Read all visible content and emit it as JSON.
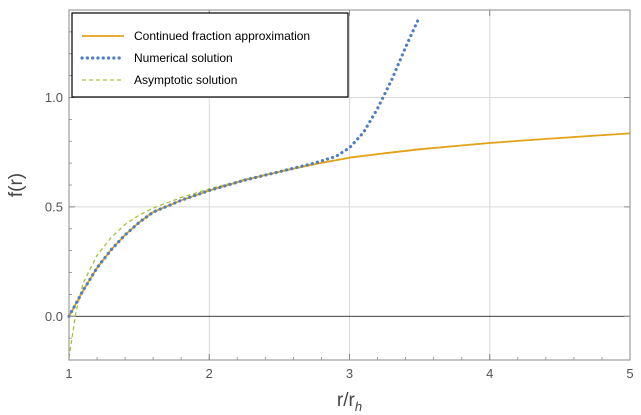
{
  "chart_data": {
    "type": "line",
    "xlabel": "r/r_h",
    "ylabel": "f(r)",
    "xlim": [
      1,
      5
    ],
    "ylim": [
      -0.2,
      1.4
    ],
    "x_ticks": [
      1,
      2,
      3,
      4,
      5
    ],
    "y_ticks": [
      0.0,
      0.5,
      1.0
    ],
    "x_tick_labels": [
      "1",
      "2",
      "3",
      "4",
      "5"
    ],
    "y_tick_labels": [
      "0.0",
      "0.5",
      "1.0"
    ],
    "grid": true,
    "zero_line": true,
    "legend_position": "top-left",
    "series": [
      {
        "name": "Continued fraction approximation",
        "style": "solid",
        "color": "#e3a21a",
        "x": [
          1.0,
          1.1,
          1.2,
          1.3,
          1.4,
          1.5,
          1.6,
          1.8,
          2.0,
          2.25,
          2.5,
          2.75,
          3.0,
          3.25,
          3.5,
          3.75,
          4.0,
          4.25,
          4.5,
          4.75,
          5.0
        ],
        "y": [
          0.0,
          0.117,
          0.221,
          0.304,
          0.372,
          0.429,
          0.476,
          0.53,
          0.575,
          0.622,
          0.661,
          0.695,
          0.725,
          0.745,
          0.763,
          0.778,
          0.792,
          0.804,
          0.815,
          0.826,
          0.836
        ]
      },
      {
        "name": "Numerical solution",
        "style": "dotted",
        "color": "#4f7fc0",
        "x": [
          1.0,
          1.1,
          1.2,
          1.3,
          1.4,
          1.5,
          1.6,
          1.8,
          2.0,
          2.25,
          2.5,
          2.75,
          2.9,
          3.0,
          3.1,
          3.2,
          3.3,
          3.4,
          3.5
        ],
        "y": [
          0.0,
          0.117,
          0.221,
          0.304,
          0.372,
          0.429,
          0.476,
          0.53,
          0.575,
          0.622,
          0.661,
          0.7,
          0.73,
          0.77,
          0.84,
          0.95,
          1.08,
          1.23,
          1.37
        ]
      },
      {
        "name": "Asymptotic solution",
        "style": "dashed",
        "color": "#a6c23a",
        "x": [
          1.0,
          1.05,
          1.1,
          1.2,
          1.3,
          1.4,
          1.5,
          1.6,
          1.8,
          2.0,
          2.25,
          2.5,
          2.75,
          3.0,
          3.5,
          4.0,
          4.5,
          5.0
        ],
        "y": [
          -0.19,
          0.02,
          0.15,
          0.278,
          0.36,
          0.42,
          0.462,
          0.495,
          0.543,
          0.582,
          0.625,
          0.663,
          0.697,
          0.726,
          0.765,
          0.793,
          0.815,
          0.836
        ]
      }
    ]
  }
}
